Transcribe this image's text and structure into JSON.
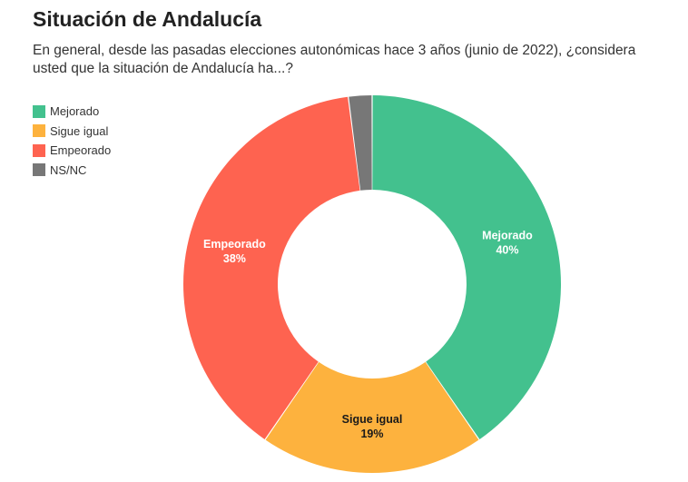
{
  "chart_data": {
    "type": "pie",
    "variant": "donut",
    "title": "Situación de Andalucía",
    "subtitle": "En general, desde las pasadas elecciones autonómicas hace 3 años (junio de 2022), ¿considera usted que la situación de Andalucía ha...?",
    "categories": [
      "Mejorado",
      "Sigue igual",
      "Empeorado",
      "NS/NC"
    ],
    "values": [
      40,
      19,
      38,
      2
    ],
    "value_labels": [
      "40%",
      "19%",
      "38%",
      ""
    ],
    "colors": [
      "#43c18e",
      "#fdb23e",
      "#fe6350",
      "#777777"
    ],
    "label_colors": [
      "#ffffff",
      "#1a1a1a",
      "#ffffff",
      "#ffffff"
    ],
    "legend_position": "top-left"
  }
}
